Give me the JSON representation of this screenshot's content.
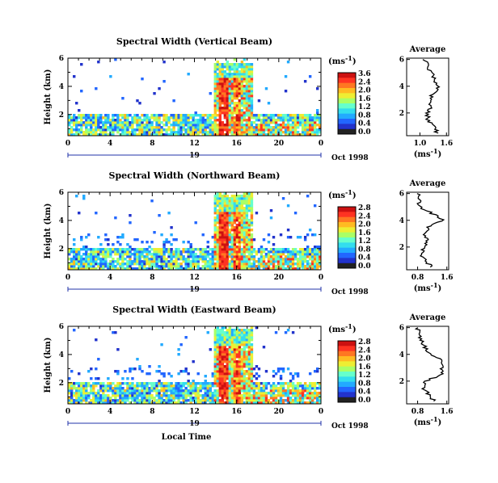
{
  "chart_data": [
    {
      "type": "heatmap",
      "title": "Spectral Width (Vertical Beam)",
      "ylabel": "Height (km)",
      "xlabel": "",
      "xlim": [
        0,
        24
      ],
      "ylim": [
        0.5,
        6
      ],
      "x_ticks": [
        "0",
        "4",
        "8",
        "12",
        "16",
        "20",
        "0"
      ],
      "y_ticks": [
        "2",
        "4",
        "6"
      ],
      "date_day": "19",
      "date_label": "Oct 1998",
      "colorbar": {
        "unit": "(ms",
        "unit_exp": "-1",
        "unit_close": ")",
        "labels": [
          "3.6",
          "2.4",
          "2.0",
          "1.6",
          "1.2",
          "0.8",
          "0.4",
          "0.0"
        ]
      },
      "profile": {
        "title": "Average",
        "xlabel": "(ms",
        "x_ticks": [
          "1.0",
          "1.6"
        ],
        "heights": [
          0.5,
          1.0,
          1.5,
          2.0,
          2.5,
          3.0,
          3.5,
          4.0,
          4.5,
          5.0,
          5.5,
          6.0
        ],
        "values": [
          1.38,
          1.3,
          1.17,
          1.16,
          1.25,
          1.25,
          1.3,
          1.43,
          1.32,
          1.27,
          1.18,
          1.12
        ]
      }
    },
    {
      "type": "heatmap",
      "title": "Spectral Width (Northward Beam)",
      "ylabel": "Height (km)",
      "xlabel": "",
      "xlim": [
        0,
        24
      ],
      "ylim": [
        0.5,
        6
      ],
      "x_ticks": [
        "0",
        "4",
        "8",
        "12",
        "16",
        "20",
        "0"
      ],
      "y_ticks": [
        "2",
        "4",
        "6"
      ],
      "date_day": "19",
      "date_label": "Oct 1998",
      "colorbar": {
        "unit": "(ms",
        "unit_exp": "-1",
        "unit_close": ")",
        "labels": [
          "2.8",
          "2.4",
          "2.0",
          "1.6",
          "1.2",
          "0.8",
          "0.4",
          "0.0"
        ]
      },
      "profile": {
        "title": "Average",
        "xlabel": "(ms",
        "x_ticks": [
          "0.8",
          "1.6"
        ],
        "heights": [
          0.5,
          1.0,
          1.5,
          2.0,
          2.5,
          3.0,
          3.5,
          4.0,
          4.5,
          5.0,
          5.5,
          6.0
        ],
        "values": [
          1.2,
          1.0,
          0.9,
          1.0,
          1.05,
          1.0,
          1.1,
          1.5,
          1.2,
          0.85,
          0.83,
          0.82
        ]
      }
    },
    {
      "type": "heatmap",
      "title": "Spectral Width (Eastward Beam)",
      "ylabel": "Height (km)",
      "xlabel": "Local Time",
      "xlim": [
        0,
        24
      ],
      "ylim": [
        0.5,
        6
      ],
      "x_ticks": [
        "0",
        "4",
        "8",
        "12",
        "16",
        "20",
        "0"
      ],
      "y_ticks": [
        "2",
        "4",
        "6"
      ],
      "date_day": "19",
      "date_label": "Oct 1998",
      "colorbar": {
        "unit": "(ms",
        "unit_exp": "-1",
        "unit_close": ")",
        "labels": [
          "2.8",
          "2.4",
          "2.0",
          "1.6",
          "1.2",
          "0.8",
          "0.4",
          "0.0"
        ]
      },
      "profile": {
        "title": "Average",
        "xlabel": "(ms",
        "x_ticks": [
          "0.8",
          "1.6"
        ],
        "heights": [
          0.5,
          1.0,
          1.5,
          2.0,
          2.5,
          3.0,
          3.5,
          4.0,
          4.5,
          5.0,
          5.5,
          6.0
        ],
        "values": [
          1.25,
          1.1,
          0.95,
          1.0,
          1.5,
          1.45,
          1.5,
          1.15,
          1.0,
          0.9,
          0.85,
          0.8
        ]
      }
    }
  ]
}
